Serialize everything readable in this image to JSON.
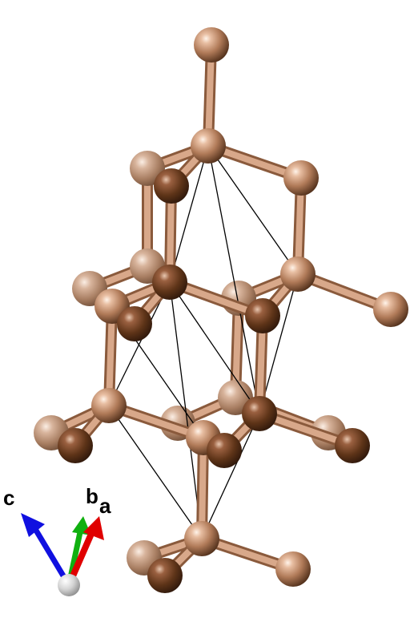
{
  "axes": {
    "a_label": "a",
    "b_label": "b",
    "c_label": "c",
    "a_color": "#e00000",
    "b_color": "#10b010",
    "c_color": "#1010e0"
  },
  "colors": {
    "atom_highlight": "#f6dccb",
    "atom_mid": "#b07a58",
    "atom_dark": "#4a2a16",
    "bond_light": "#d8a88a",
    "bond_dark": "#8a5a3c",
    "cell_edge": "#000000",
    "origin_ball": "#cccccc"
  }
}
